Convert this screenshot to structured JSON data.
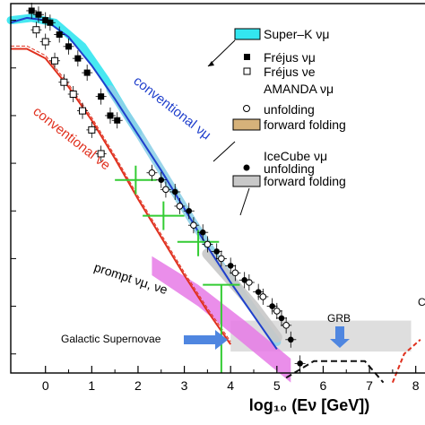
{
  "chart_data": {
    "type": "scatter",
    "title": "",
    "xlabel": "log₁₀ (Eν [GeV])",
    "ylabel": "",
    "xlim": [
      -0.75,
      8.2
    ],
    "ylim": [
      -7.4,
      0.35
    ],
    "xtick_labels": [
      "0",
      "1",
      "2",
      "3",
      "4",
      "5",
      "6",
      "7",
      "8"
    ],
    "grid": false,
    "legend_position": "right",
    "legend": [
      {
        "key": "superk",
        "label": "Super–K νμ",
        "marker": "cyan-box"
      },
      {
        "key": "frejus_mu",
        "label": "Fréjus νμ",
        "marker": "filled-square"
      },
      {
        "key": "frejus_e",
        "label": "Fréjus νe",
        "marker": "open-square"
      },
      {
        "key": "amanda",
        "label": "AMANDA νμ",
        "marker": "header"
      },
      {
        "key": "amanda_unf",
        "label": "unfolding",
        "marker": "open-circle"
      },
      {
        "key": "amanda_ff",
        "label": "forward folding",
        "marker": "tan-box"
      },
      {
        "key": "icecube",
        "label": "IceCube νμ",
        "marker": "header"
      },
      {
        "key": "icecube_unf",
        "label": "unfolding",
        "marker": "filled-circle"
      },
      {
        "key": "icecube_ff",
        "label": "forward folding",
        "marker": "gray-box"
      }
    ],
    "annotations": {
      "conv_mu": "conventional νμ",
      "conv_e": "conventional νe",
      "prompt": "prompt νμ, νe",
      "galactic": "Galactic Supernovae",
      "grb": "GRB",
      "edge_c": "C"
    },
    "colors": {
      "conv_mu": "#1f3fcc",
      "conv_e": "#e0301e",
      "superk_band": "#33e6f0",
      "amanda_band": "#d6b27a",
      "icecube_band": "#c8c8c8",
      "prompt_band": "#e67ae6",
      "green": "#33cc33",
      "arrow": "#4f86e0",
      "grb": "#111111"
    },
    "series": [
      {
        "key": "frejus_mu",
        "x": [
          -0.3,
          -0.15,
          0.0,
          0.1,
          0.3,
          0.5,
          0.7,
          0.9,
          1.2,
          1.4,
          1.55
        ],
        "y": [
          0.2,
          0.12,
          0.0,
          -0.05,
          -0.3,
          -0.55,
          -0.8,
          -1.1,
          -1.6,
          -2.0,
          -2.1
        ]
      },
      {
        "key": "frejus_e",
        "x": [
          -0.2,
          0.0,
          0.2,
          0.4,
          0.6,
          0.8,
          1.0,
          1.2
        ],
        "y": [
          -0.2,
          -0.45,
          -0.85,
          -1.3,
          -1.55,
          -1.9,
          -2.3,
          -2.8
        ]
      },
      {
        "key": "amanda_unf",
        "x": [
          2.3,
          2.6,
          2.9,
          3.2,
          3.5,
          3.8,
          4.1,
          4.4,
          4.7,
          5.0,
          5.2
        ],
        "y": [
          -3.2,
          -3.55,
          -3.9,
          -4.3,
          -4.7,
          -5.0,
          -5.3,
          -5.5,
          -5.8,
          -6.1,
          -6.4
        ]
      },
      {
        "key": "icecube_unf",
        "x": [
          2.5,
          2.8,
          3.1,
          3.4,
          3.7,
          4.0,
          4.3,
          4.6,
          4.9,
          5.1,
          5.3,
          5.5
        ],
        "y": [
          -3.35,
          -3.6,
          -4.0,
          -4.45,
          -4.85,
          -5.15,
          -5.45,
          -5.7,
          -6.0,
          -6.25,
          -6.7,
          -7.2
        ]
      }
    ],
    "bands": [
      {
        "key": "superk",
        "x": [
          -0.75,
          -0.3,
          0.2,
          0.8,
          1.3,
          1.7,
          2.0
        ],
        "y": [
          0.0,
          0.05,
          -0.05,
          -0.55,
          -1.25,
          -1.9,
          -2.35
        ]
      },
      {
        "key": "conv_mu_band",
        "x": [
          1.4,
          2.0,
          2.6,
          3.2,
          3.8,
          4.4,
          5.0
        ],
        "y": [
          -1.45,
          -2.35,
          -3.3,
          -4.25,
          -5.15,
          -5.95,
          -6.75
        ]
      },
      {
        "key": "icecube_ff",
        "x": [
          3.5,
          4.0,
          4.5,
          5.0
        ],
        "y": [
          -4.9,
          -5.45,
          -6.0,
          -6.65
        ]
      }
    ],
    "curves": [
      {
        "key": "conv_mu",
        "x": [
          -0.75,
          -0.4,
          0.0,
          0.5,
          1.0,
          1.5,
          2.0,
          2.5,
          3.0,
          3.5,
          4.0,
          4.5,
          5.0
        ],
        "y": [
          -0.05,
          0.05,
          0.0,
          -0.35,
          -0.95,
          -1.65,
          -2.4,
          -3.15,
          -3.95,
          -4.75,
          -5.5,
          -6.2,
          -6.9
        ]
      },
      {
        "key": "conv_e",
        "x": [
          -0.75,
          -0.4,
          0.0,
          0.5,
          1.0,
          1.5,
          2.0,
          2.5,
          3.0,
          3.5,
          4.0
        ],
        "y": [
          -0.6,
          -0.6,
          -0.8,
          -1.4,
          -2.1,
          -2.9,
          -3.75,
          -4.55,
          -5.35,
          -6.1,
          -6.8
        ]
      }
    ],
    "green_boxes": [
      {
        "x": [
          1.5,
          2.4
        ],
        "y": [
          -3.05,
          -3.65
        ],
        "xc": 1.95,
        "yc": -3.35
      },
      {
        "x": [
          2.1,
          3.0
        ],
        "y": [
          -3.8,
          -4.4
        ],
        "xc": 2.55,
        "yc": -4.1
      },
      {
        "x": [
          2.85,
          3.75
        ],
        "y": [
          -4.4,
          -4.95
        ],
        "xc": 3.3,
        "yc": -4.65
      }
    ],
    "green_limit": {
      "x": [
        3.4,
        4.2
      ],
      "y": -5.55,
      "xc": 3.8
    },
    "prompt_band": {
      "x": [
        2.3,
        3.3,
        4.3,
        5.3
      ],
      "y_hi": [
        -4.95,
        -5.55,
        -6.3,
        -7.1
      ],
      "y_lo": [
        -5.35,
        -6.0,
        -6.8,
        -7.6
      ]
    },
    "galactic_band": {
      "x": [
        4.0,
        7.9
      ],
      "y": [
        -6.3,
        -6.95
      ]
    },
    "grb_curve": {
      "x": [
        5.2,
        5.8,
        6.3,
        6.9,
        7.3
      ],
      "y": [
        -7.5,
        -7.15,
        -7.15,
        -7.15,
        -7.6
      ]
    },
    "gzk_curve": {
      "x": [
        7.5,
        7.75,
        8.1
      ],
      "y": [
        -7.6,
        -7.0,
        -6.7
      ]
    }
  }
}
